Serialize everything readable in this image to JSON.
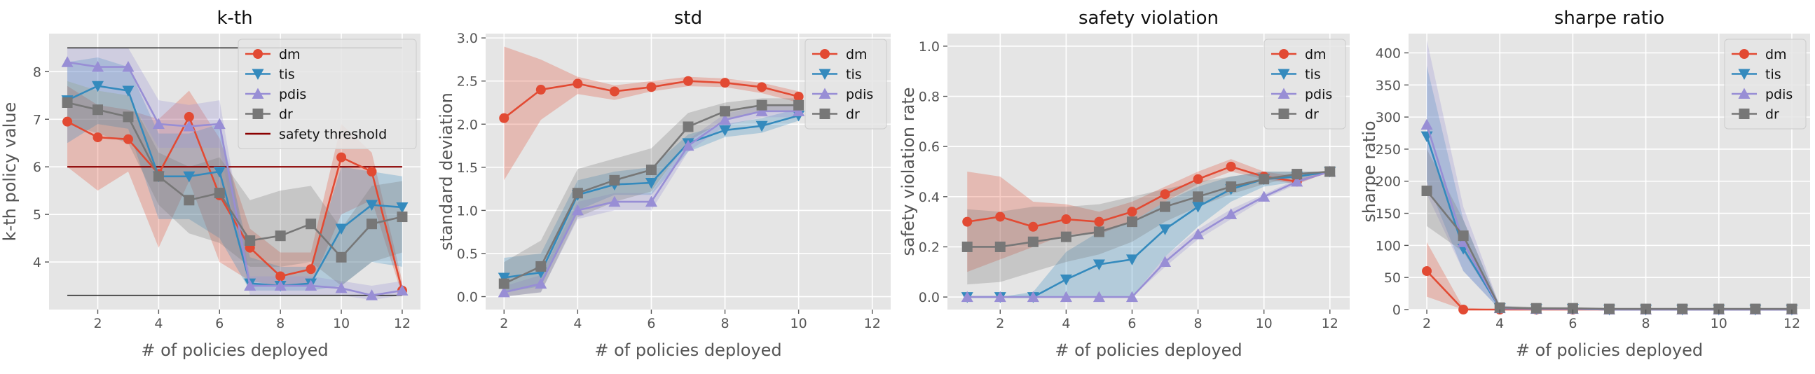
{
  "figure": {
    "colors": {
      "dm": "#E24A33",
      "tis": "#348ABD",
      "pdis": "#988ED5",
      "dr": "#777777",
      "threshold": "#8B0000"
    }
  },
  "chart_data": [
    {
      "type": "line",
      "title": "k-th",
      "xlabel": "# of policies deployed",
      "ylabel": "k-th policy value",
      "xlim": [
        0.4,
        12.6
      ],
      "ylim": [
        3.0,
        8.8
      ],
      "xticks": [
        2,
        4,
        6,
        8,
        10,
        12
      ],
      "yticks": [
        4,
        5,
        6,
        7,
        8
      ],
      "grid": true,
      "legend": "top-right",
      "x": [
        1,
        2,
        3,
        4,
        5,
        6,
        7,
        8,
        9,
        10,
        11,
        12
      ],
      "series": [
        {
          "name": "dm",
          "marker": "o",
          "values": [
            6.95,
            6.62,
            6.58,
            5.85,
            7.05,
            5.4,
            4.3,
            3.7,
            3.85,
            6.2,
            5.9,
            3.4
          ],
          "lower": [
            6.0,
            5.5,
            5.9,
            4.3,
            5.7,
            4.0,
            3.6,
            3.5,
            3.5,
            5.0,
            5.3,
            3.3
          ],
          "upper": [
            7.7,
            7.3,
            7.2,
            7.0,
            7.6,
            6.6,
            4.7,
            4.2,
            4.2,
            6.9,
            6.3,
            3.6
          ]
        },
        {
          "name": "tis",
          "marker": "v",
          "values": [
            7.4,
            7.7,
            7.6,
            5.8,
            5.8,
            5.9,
            3.55,
            3.5,
            3.55,
            4.7,
            5.2,
            5.15
          ],
          "lower": [
            6.5,
            6.9,
            6.8,
            4.9,
            4.9,
            4.5,
            3.4,
            3.4,
            3.4,
            3.5,
            4.0,
            3.9
          ],
          "upper": [
            8.2,
            8.3,
            8.1,
            6.7,
            6.7,
            6.9,
            4.1,
            3.9,
            3.9,
            6.0,
            5.9,
            5.8
          ]
        },
        {
          "name": "pdis",
          "marker": "^",
          "values": [
            8.2,
            8.1,
            8.1,
            6.9,
            6.85,
            6.9,
            3.5,
            3.5,
            3.5,
            3.45,
            3.3,
            3.4
          ],
          "lower": [
            7.8,
            7.6,
            7.5,
            6.4,
            6.4,
            6.4,
            3.3,
            3.3,
            3.3,
            3.3,
            3.2,
            3.3
          ],
          "upper": [
            8.5,
            8.5,
            8.5,
            7.4,
            7.3,
            7.4,
            3.7,
            3.7,
            3.7,
            3.6,
            3.5,
            3.6
          ]
        },
        {
          "name": "dr",
          "marker": "s",
          "values": [
            7.35,
            7.2,
            7.05,
            5.8,
            5.3,
            5.45,
            4.45,
            4.55,
            4.8,
            4.1,
            4.8,
            4.95
          ],
          "lower": [
            6.9,
            6.7,
            6.5,
            5.2,
            4.6,
            4.4,
            3.9,
            3.9,
            4.0,
            3.5,
            4.0,
            4.2
          ],
          "upper": [
            7.8,
            7.6,
            7.5,
            6.3,
            6.0,
            6.2,
            5.3,
            5.5,
            5.6,
            4.7,
            5.6,
            5.7
          ]
        }
      ],
      "hlines": [
        {
          "name": "safety threshold",
          "y": 6.0,
          "in_legend": true,
          "color": "#8B0000"
        },
        {
          "y": 8.5,
          "in_legend": false,
          "color": "#222222"
        },
        {
          "y": 3.3,
          "in_legend": false,
          "color": "#222222"
        }
      ]
    },
    {
      "type": "line",
      "title": "std",
      "xlabel": "# of policies deployed",
      "ylabel": "standard deviation",
      "xlim": [
        1.5,
        12.5
      ],
      "ylim": [
        -0.15,
        3.05
      ],
      "xticks": [
        2,
        4,
        6,
        8,
        10,
        12
      ],
      "yticks": [
        0.0,
        0.5,
        1.0,
        1.5,
        2.0,
        2.5,
        3.0
      ],
      "grid": true,
      "legend": "top-right",
      "x": [
        2,
        3,
        4,
        5,
        6,
        7,
        8,
        9,
        10
      ],
      "series": [
        {
          "name": "dm",
          "marker": "o",
          "values": [
            2.07,
            2.4,
            2.47,
            2.38,
            2.43,
            2.5,
            2.48,
            2.43,
            2.32
          ],
          "lower": [
            1.35,
            2.05,
            2.35,
            2.28,
            2.38,
            2.44,
            2.43,
            2.36,
            2.25
          ],
          "upper": [
            2.9,
            2.75,
            2.55,
            2.45,
            2.5,
            2.55,
            2.53,
            2.48,
            2.38
          ]
        },
        {
          "name": "tis",
          "marker": "v",
          "values": [
            0.22,
            0.28,
            1.18,
            1.3,
            1.32,
            1.78,
            1.93,
            1.98,
            2.1
          ],
          "lower": [
            0.05,
            0.12,
            1.0,
            1.18,
            1.18,
            1.68,
            1.85,
            1.9,
            2.04
          ],
          "upper": [
            0.45,
            0.5,
            1.35,
            1.45,
            1.5,
            1.88,
            2.0,
            2.07,
            2.18
          ]
        },
        {
          "name": "pdis",
          "marker": "^",
          "values": [
            0.05,
            0.15,
            1.0,
            1.1,
            1.1,
            1.75,
            2.05,
            2.15,
            2.15
          ],
          "lower": [
            0.0,
            0.05,
            0.9,
            1.0,
            1.0,
            1.68,
            1.98,
            2.08,
            2.08
          ],
          "upper": [
            0.12,
            0.25,
            1.1,
            1.2,
            1.2,
            1.82,
            2.12,
            2.22,
            2.22
          ]
        },
        {
          "name": "dr",
          "marker": "s",
          "values": [
            0.15,
            0.35,
            1.2,
            1.35,
            1.47,
            1.97,
            2.15,
            2.22,
            2.22
          ],
          "lower": [
            0.0,
            0.05,
            0.92,
            1.1,
            1.22,
            1.8,
            2.05,
            2.14,
            2.15
          ],
          "upper": [
            0.4,
            0.65,
            1.48,
            1.6,
            1.72,
            2.13,
            2.25,
            2.3,
            2.3
          ]
        }
      ],
      "hlines": []
    },
    {
      "type": "line",
      "title": "safety violation",
      "xlabel": "# of policies deployed",
      "ylabel": "safety violation rate",
      "xlim": [
        0.4,
        12.6
      ],
      "ylim": [
        -0.05,
        1.05
      ],
      "xticks": [
        2,
        4,
        6,
        8,
        10,
        12
      ],
      "yticks": [
        0.0,
        0.2,
        0.4,
        0.6,
        0.8,
        1.0
      ],
      "grid": true,
      "legend": "top-right",
      "x": [
        1,
        2,
        3,
        4,
        5,
        6,
        7,
        8,
        9,
        10,
        11,
        12
      ],
      "series": [
        {
          "name": "dm",
          "marker": "o",
          "values": [
            0.3,
            0.32,
            0.28,
            0.31,
            0.3,
            0.34,
            0.41,
            0.47,
            0.52,
            0.48,
            0.46,
            0.5
          ],
          "lower": [
            0.1,
            0.15,
            0.2,
            0.25,
            0.25,
            0.3,
            0.38,
            0.45,
            0.5,
            0.47,
            0.45,
            0.5
          ],
          "upper": [
            0.5,
            0.48,
            0.38,
            0.37,
            0.34,
            0.38,
            0.44,
            0.5,
            0.55,
            0.5,
            0.48,
            0.5
          ]
        },
        {
          "name": "tis",
          "marker": "v",
          "values": [
            0.0,
            0.0,
            0.0,
            0.07,
            0.13,
            0.15,
            0.27,
            0.36,
            0.43,
            0.47,
            0.48,
            0.5
          ],
          "lower": [
            0.0,
            0.0,
            0.0,
            0.0,
            0.0,
            0.0,
            0.16,
            0.28,
            0.38,
            0.44,
            0.46,
            0.5
          ],
          "upper": [
            0.0,
            0.0,
            0.02,
            0.18,
            0.26,
            0.3,
            0.38,
            0.44,
            0.48,
            0.5,
            0.5,
            0.5
          ]
        },
        {
          "name": "pdis",
          "marker": "^",
          "values": [
            0.0,
            0.0,
            0.0,
            0.0,
            0.0,
            0.0,
            0.14,
            0.25,
            0.33,
            0.4,
            0.46,
            0.5
          ],
          "lower": [
            0.0,
            0.0,
            0.0,
            0.0,
            0.0,
            0.0,
            0.12,
            0.23,
            0.31,
            0.39,
            0.45,
            0.5
          ],
          "upper": [
            0.0,
            0.0,
            0.0,
            0.0,
            0.0,
            0.0,
            0.16,
            0.27,
            0.35,
            0.41,
            0.47,
            0.5
          ]
        },
        {
          "name": "dr",
          "marker": "s",
          "values": [
            0.2,
            0.2,
            0.22,
            0.24,
            0.26,
            0.3,
            0.36,
            0.4,
            0.44,
            0.47,
            0.49,
            0.5
          ],
          "lower": [
            0.05,
            0.06,
            0.1,
            0.14,
            0.17,
            0.22,
            0.3,
            0.36,
            0.41,
            0.45,
            0.48,
            0.5
          ],
          "upper": [
            0.35,
            0.34,
            0.36,
            0.36,
            0.37,
            0.4,
            0.43,
            0.46,
            0.48,
            0.5,
            0.5,
            0.5
          ]
        }
      ],
      "hlines": []
    },
    {
      "type": "line",
      "title": "sharpe ratio",
      "xlabel": "# of policies deployed",
      "ylabel": "sharpe ratio",
      "xlim": [
        1.5,
        12.5
      ],
      "ylim": [
        0,
        430
      ],
      "xticks": [
        2,
        4,
        6,
        8,
        10,
        12
      ],
      "yticks": [
        0,
        50,
        100,
        150,
        200,
        250,
        300,
        350,
        400
      ],
      "grid": true,
      "legend": "top-right",
      "x": [
        2,
        3,
        4,
        5,
        6,
        7,
        8,
        9,
        10,
        11,
        12
      ],
      "series": [
        {
          "name": "dm",
          "marker": "o",
          "values": [
            60,
            0,
            0,
            0,
            0,
            0,
            0,
            0,
            0,
            0,
            0
          ],
          "lower": [
            20,
            0,
            0,
            0,
            0,
            0,
            0,
            0,
            0,
            0,
            0
          ],
          "upper": [
            105,
            3,
            0,
            0,
            0,
            0,
            0,
            0,
            0,
            0,
            0
          ]
        },
        {
          "name": "tis",
          "marker": "v",
          "values": [
            270,
            95,
            2,
            1,
            1,
            0,
            0,
            0,
            0,
            0,
            0
          ],
          "lower": [
            200,
            60,
            0,
            0,
            0,
            0,
            0,
            0,
            0,
            0,
            0
          ],
          "upper": [
            380,
            140,
            5,
            2,
            2,
            1,
            1,
            0,
            0,
            0,
            0
          ]
        },
        {
          "name": "pdis",
          "marker": "^",
          "values": [
            288,
            105,
            2,
            1,
            1,
            0,
            0,
            0,
            0,
            0,
            0
          ],
          "lower": [
            180,
            60,
            0,
            0,
            0,
            0,
            0,
            0,
            0,
            0,
            0
          ],
          "upper": [
            420,
            160,
            6,
            2,
            2,
            1,
            1,
            0,
            0,
            0,
            0
          ]
        },
        {
          "name": "dr",
          "marker": "s",
          "values": [
            185,
            115,
            3,
            2,
            2,
            1,
            1,
            1,
            1,
            1,
            1
          ],
          "lower": [
            130,
            90,
            0,
            0,
            0,
            0,
            0,
            0,
            0,
            0,
            0
          ],
          "upper": [
            250,
            140,
            6,
            4,
            3,
            2,
            2,
            2,
            2,
            2,
            2
          ]
        }
      ],
      "hlines": []
    }
  ]
}
